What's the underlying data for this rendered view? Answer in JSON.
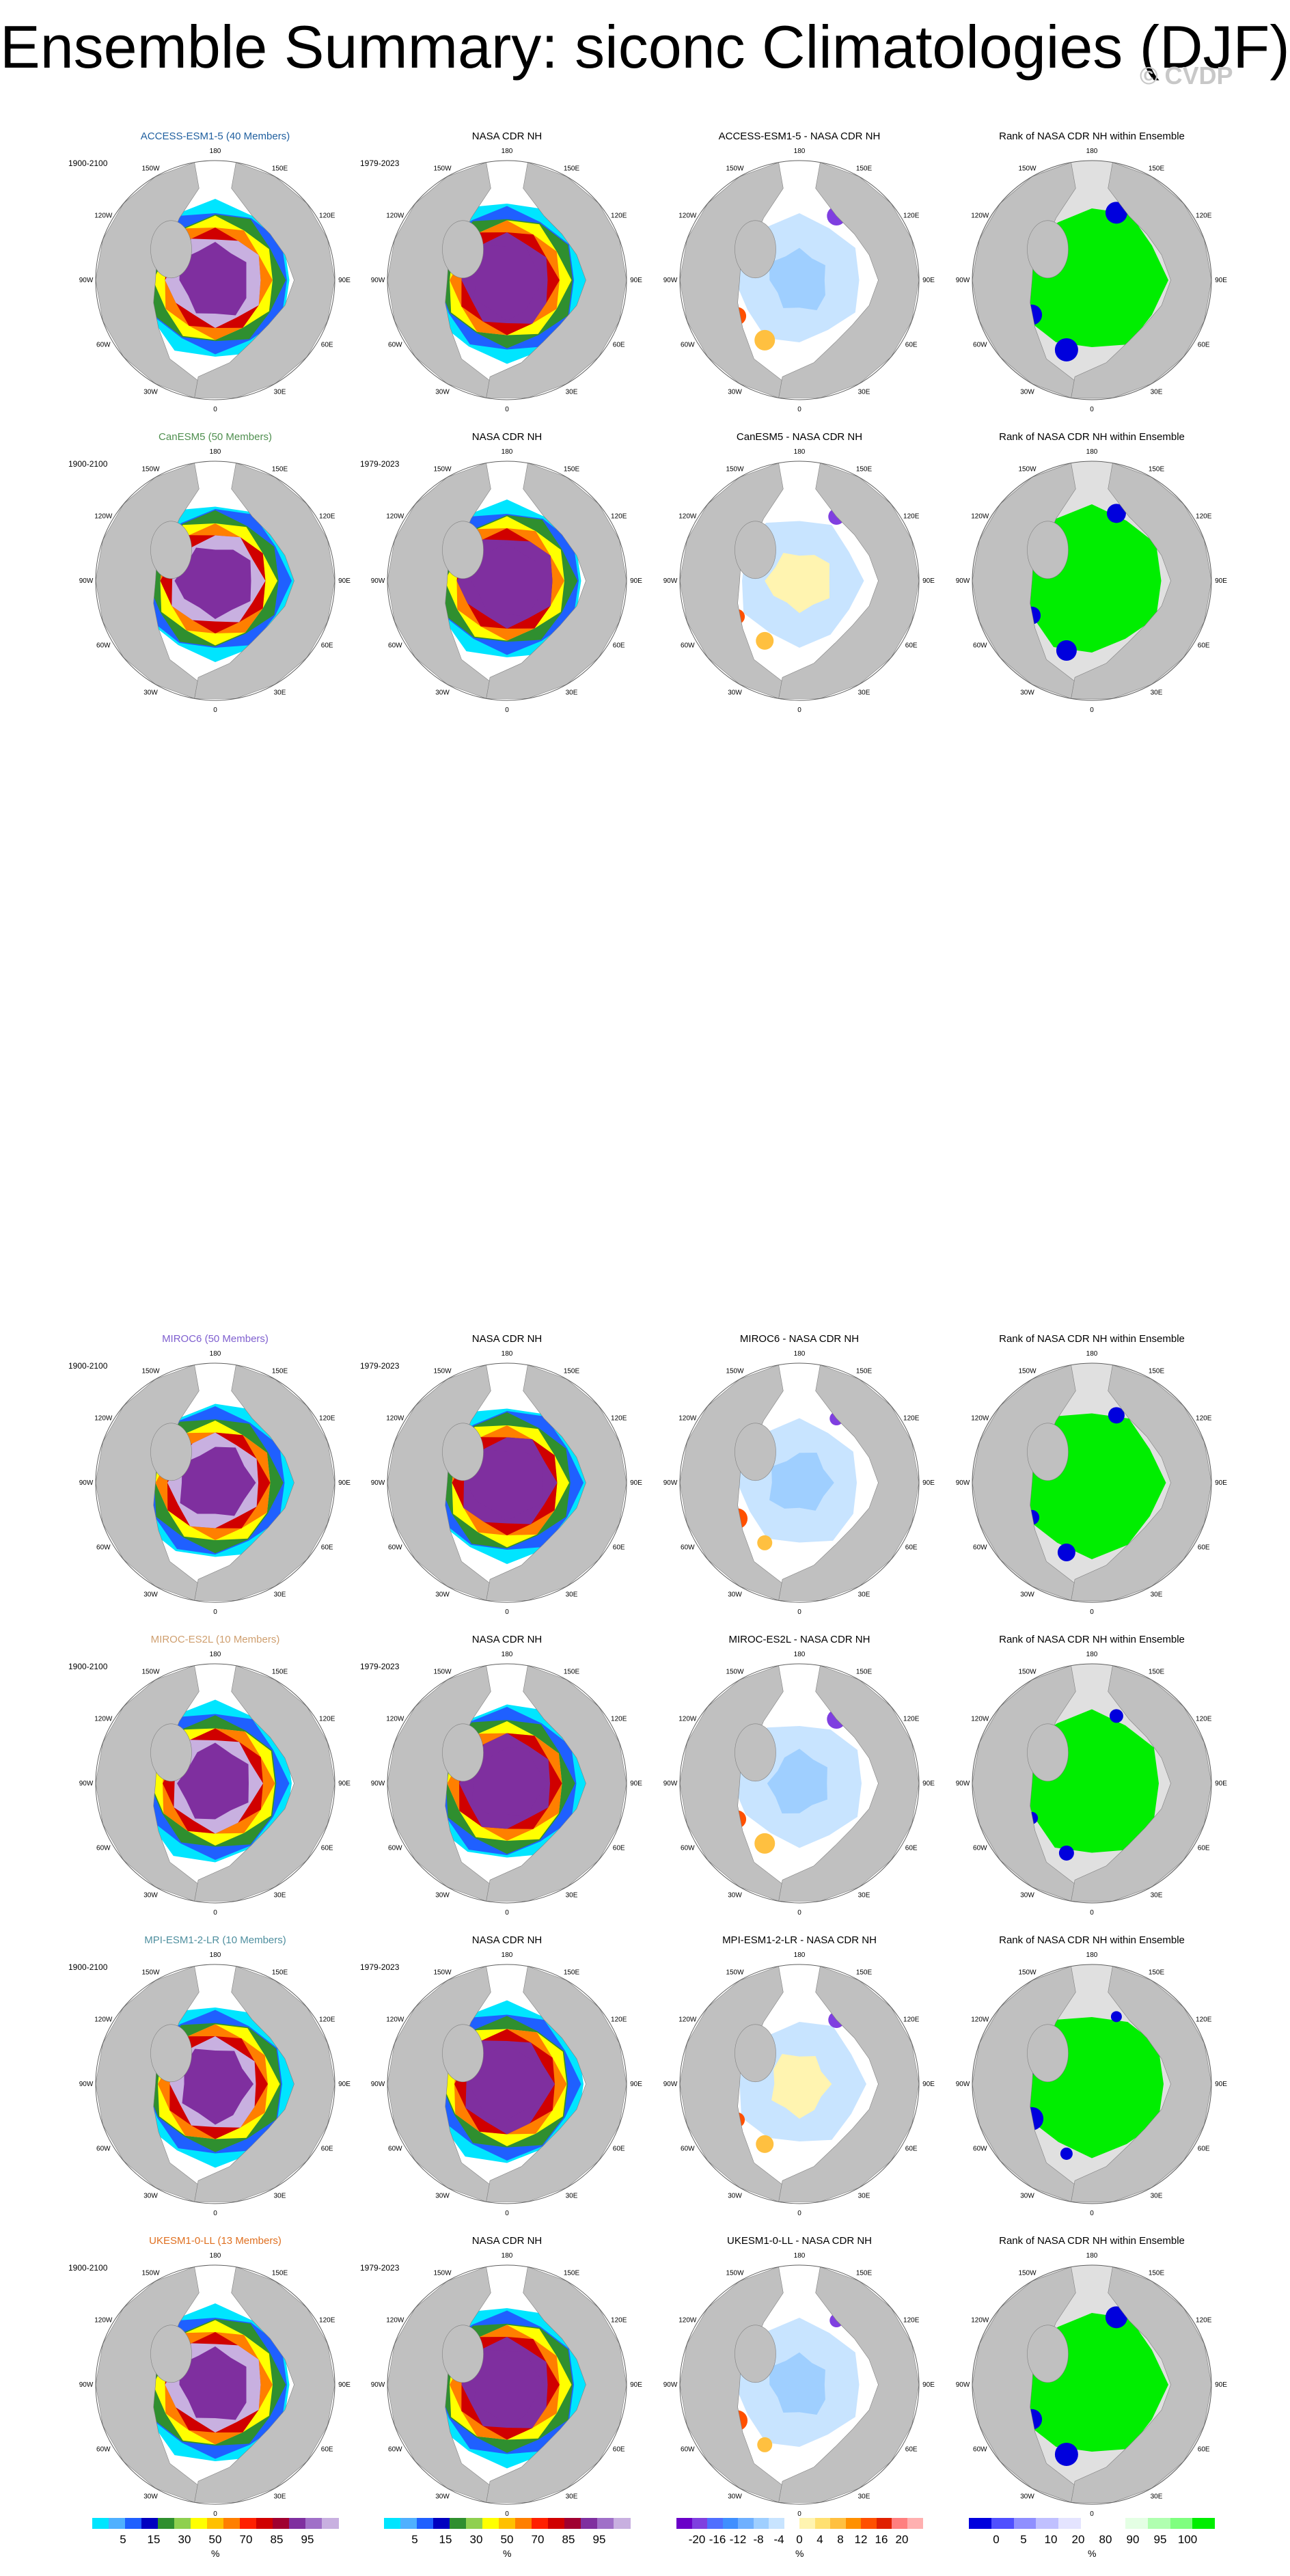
{
  "title": "Ensemble Summary: siconc Climatologies (DJF)",
  "watermark": "© CVDP",
  "colors": {
    "land": "#c0c0c0",
    "ocean": "#ffffff",
    "rank_background": "#e0e0e0",
    "rank_high": "#00ee00",
    "rank_low": "#0000dd"
  },
  "lon_labels": [
    "180",
    "150E",
    "120E",
    "90E",
    "60E",
    "30E",
    "0",
    "30W",
    "60W",
    "90W",
    "120W",
    "150W"
  ],
  "column_titles": {
    "obs": "NASA CDR NH",
    "rank": "Rank of NASA CDR NH within Ensemble"
  },
  "model_years": "1900-2100",
  "obs_years": "1979-2023",
  "rows": [
    {
      "model_title": "ACCESS-ESM1-5 (40 Members)",
      "model_color": "#1f5f9f",
      "diff_title": "ACCESS-ESM1-5 - NASA CDR NH"
    },
    {
      "model_title": "CanESM5 (50 Members)",
      "model_color": "#4f8f4f",
      "diff_title": "CanESM5 - NASA CDR NH"
    },
    {
      "model_title": "MIROC6 (50 Members)",
      "model_color": "#7f5fcf",
      "diff_title": "MIROC6 - NASA CDR NH"
    },
    {
      "model_title": "MIROC-ES2L (10 Members)",
      "model_color": "#cf9f6f",
      "diff_title": "MIROC-ES2L - NASA CDR NH"
    },
    {
      "model_title": "MPI-ESM1-2-LR (10 Members)",
      "model_color": "#4f8f9f",
      "diff_title": "MPI-ESM1-2-LR - NASA CDR NH"
    },
    {
      "model_title": "UKESM1-0-LL (13 Members)",
      "model_color": "#df6f1f",
      "diff_title": "UKESM1-0-LL - NASA CDR NH"
    }
  ],
  "colorbars": [
    {
      "unit": "%",
      "colors": [
        "#00e5ff",
        "#4fb0ff",
        "#1f60ff",
        "#0000c0",
        "#2f8f2f",
        "#8fd04f",
        "#ffff00",
        "#ffc000",
        "#ff7f00",
        "#ff2000",
        "#d00000",
        "#a00030",
        "#7f2f9f",
        "#a070c8",
        "#c8b0e0"
      ],
      "labels": [
        "5",
        "15",
        "30",
        "50",
        "70",
        "85",
        "95"
      ]
    },
    {
      "unit": "%",
      "colors": [
        "#00e5ff",
        "#4fb0ff",
        "#1f60ff",
        "#0000c0",
        "#2f8f2f",
        "#8fd04f",
        "#ffff00",
        "#ffc000",
        "#ff7f00",
        "#ff2000",
        "#d00000",
        "#a00030",
        "#7f2f9f",
        "#a070c8",
        "#c8b0e0"
      ],
      "labels": [
        "5",
        "15",
        "30",
        "50",
        "70",
        "85",
        "95"
      ]
    },
    {
      "unit": "%",
      "colors": [
        "#6a00c8",
        "#7f3fe0",
        "#4f6fff",
        "#3f8fff",
        "#6fb0ff",
        "#9fcfff",
        "#c8e4ff",
        "#ffffff",
        "#fff4b0",
        "#ffe070",
        "#ffc040",
        "#ff9000",
        "#ff5000",
        "#e02000",
        "#ff7f7f",
        "#ffb0b0"
      ],
      "labels": [
        "-20",
        "-16",
        "-12",
        "-8",
        "-4",
        "0",
        "4",
        "8",
        "12",
        "16",
        "20"
      ]
    },
    {
      "unit": "%",
      "colors": [
        "#0000dd",
        "#4f4fff",
        "#8f8fff",
        "#c0c0ff",
        "#e4e4ff",
        "#ffffff",
        "#ffffff",
        "#e4ffe4",
        "#b0ffb0",
        "#7fff7f",
        "#00ee00"
      ],
      "labels": [
        "0",
        "5",
        "10",
        "20",
        "80",
        "90",
        "95",
        "100"
      ]
    }
  ]
}
